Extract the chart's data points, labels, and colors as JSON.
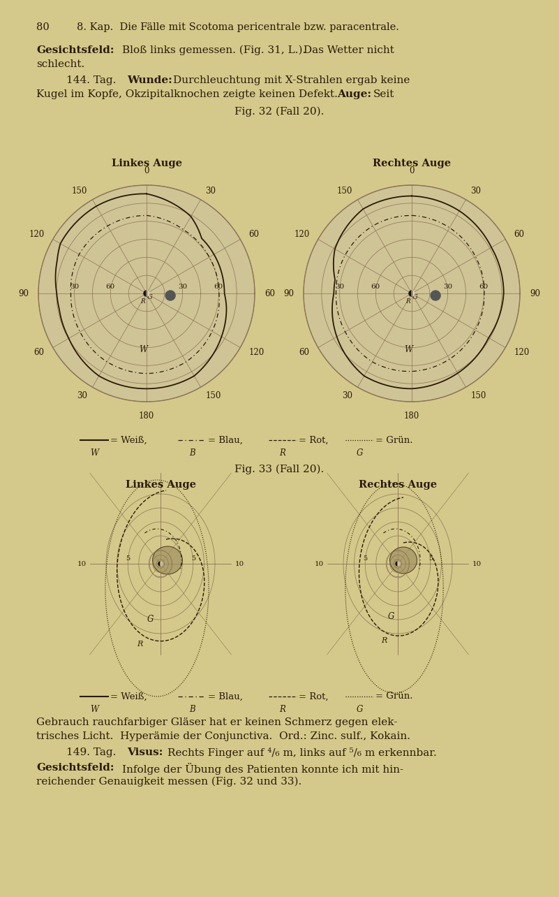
{
  "bg_color": "#d4c98a",
  "text_color": "#2a1a0a",
  "grid_color": "#8B7355",
  "page_number": "80",
  "header": "8. Kap.  Die Fälle mit Scotoma pericentrale bzw. paracentrale.",
  "fig32_caption": "Fig. 32 (Fall 20).",
  "fig32_left_title": "Linkes Auge",
  "fig32_right_title": "Rechtes Auge",
  "fig33_caption": "Fig. 33 (Fall 20).",
  "fig33_left_title": "Linkes Auge",
  "fig33_right_title": "Rechtes Auge"
}
